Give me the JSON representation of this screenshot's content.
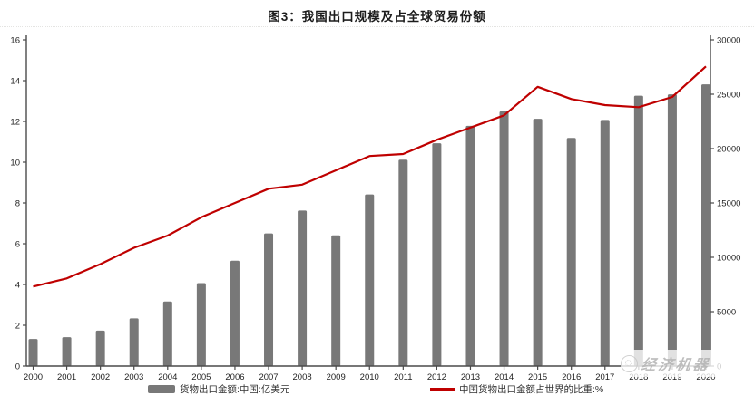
{
  "chart_data": {
    "type": "combo-bar-line",
    "title": "图3：我国出口规模及占全球贸易份额",
    "categories": [
      "2000",
      "2001",
      "2002",
      "2003",
      "2004",
      "2005",
      "2006",
      "2007",
      "2008",
      "2009",
      "2010",
      "2011",
      "2012",
      "2013",
      "2014",
      "2015",
      "2016",
      "2017",
      "2018",
      "2019",
      "2020"
    ],
    "series": [
      {
        "name": "货物出口金额:中国:亿美元",
        "type": "bar",
        "axis": "right",
        "color": "#787878",
        "values": [
          2492,
          2661,
          3256,
          4382,
          5933,
          7620,
          9689,
          12201,
          14307,
          12016,
          15778,
          18984,
          20487,
          22090,
          23422,
          22735,
          20976,
          22633,
          24867,
          24990,
          25906
        ]
      },
      {
        "name": "中国货物出口金额占世界的比重:%",
        "type": "line",
        "axis": "left",
        "color": "#bf0000",
        "values": [
          3.9,
          4.3,
          5.0,
          5.8,
          6.4,
          7.3,
          8.0,
          8.7,
          8.9,
          9.6,
          10.3,
          10.4,
          11.1,
          11.7,
          12.3,
          13.7,
          13.1,
          12.8,
          12.7,
          13.2,
          14.7
        ]
      }
    ],
    "left_axis": {
      "min": 0,
      "max": 16,
      "ticks": [
        0,
        2,
        4,
        6,
        8,
        10,
        12,
        14,
        16
      ]
    },
    "right_axis": {
      "min": 0,
      "max": 30000,
      "ticks": [
        0,
        5000,
        10000,
        15000,
        20000,
        25000,
        30000
      ]
    },
    "grid": false,
    "legend_position": "bottom"
  },
  "legend": {
    "bar_label": "货物出口金额:中国:亿美元",
    "line_label": "中国货物出口金额占世界的比重:%"
  },
  "watermark": {
    "text": "经济机器"
  },
  "colors": {
    "bar": "#787878",
    "line": "#bf0000",
    "axis": "#4a4a4a",
    "tick_text": "#222222"
  }
}
